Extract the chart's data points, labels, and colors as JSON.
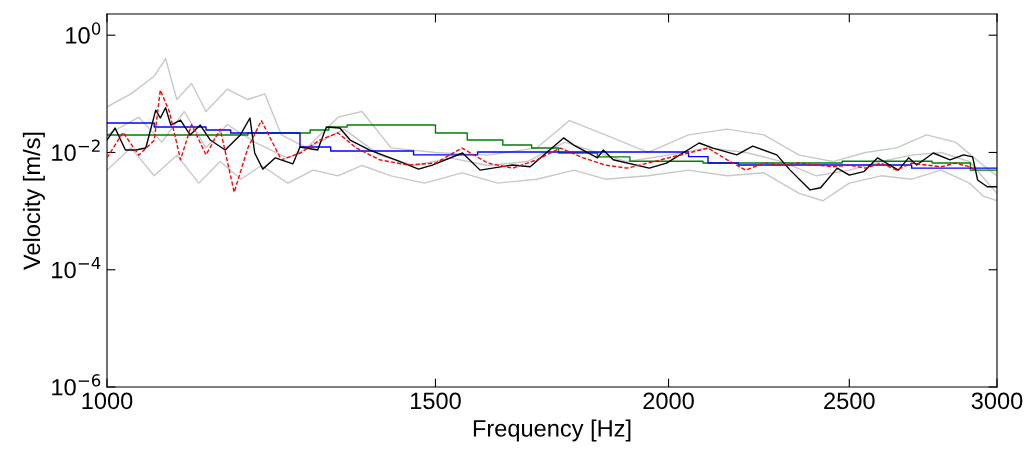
{
  "chart_data": {
    "type": "line",
    "xlabel": "Frequency [Hz]",
    "ylabel": "Velocity [m/s]",
    "log": "xy",
    "grid": false,
    "marker": "none",
    "xlim": [
      1000,
      3000
    ],
    "xticks": [
      1000,
      1500,
      2000,
      2500,
      3000
    ],
    "ylim": [
      1e-06,
      2.3
    ],
    "yticks": [
      {
        "value": 1e-06,
        "label": "10$^{−6}$"
      },
      {
        "value": 0.0001,
        "label": "10$^{−4}$"
      },
      {
        "value": 0.01,
        "label": "10$^{−2}$"
      },
      {
        "value": 1,
        "label": "10$^{0}$"
      }
    ],
    "series": [
      {
        "color": "#c8c8c8",
        "line_style": "solid",
        "x": [
          1000,
          1030,
          1060,
          1075,
          1090,
          1110,
          1130,
          1160,
          1190,
          1215,
          1240,
          1280,
          1330,
          1370,
          1420,
          1500,
          1600,
          1700,
          1770,
          1850,
          1950,
          2050,
          2150,
          2250,
          2350,
          2450,
          2550,
          2650,
          2750,
          2850,
          2950,
          3000
        ],
        "values": [
          0.06,
          0.1,
          0.2,
          0.4,
          0.08,
          0.15,
          0.05,
          0.12,
          0.08,
          0.1,
          0.02,
          0.012,
          0.04,
          0.05,
          0.012,
          0.01,
          0.009,
          0.012,
          0.035,
          0.02,
          0.01,
          0.02,
          0.025,
          0.02,
          0.009,
          0.007,
          0.01,
          0.012,
          0.02,
          0.015,
          0.006,
          0.004
        ]
      },
      {
        "color": "#c8c8c8",
        "line_style": "solid",
        "x": [
          1000,
          1030,
          1060,
          1090,
          1120,
          1150,
          1180,
          1210,
          1250,
          1290,
          1330,
          1370,
          1420,
          1480,
          1550,
          1620,
          1700,
          1780,
          1850,
          1950,
          2050,
          2150,
          2250,
          2350,
          2420,
          2500,
          2600,
          2700,
          2800,
          2900,
          2950,
          3000
        ],
        "values": [
          0.005,
          0.012,
          0.004,
          0.009,
          0.003,
          0.007,
          0.0035,
          0.006,
          0.003,
          0.005,
          0.004,
          0.006,
          0.004,
          0.003,
          0.0045,
          0.003,
          0.0035,
          0.005,
          0.0035,
          0.004,
          0.005,
          0.004,
          0.0045,
          0.002,
          0.0015,
          0.003,
          0.004,
          0.0035,
          0.005,
          0.003,
          0.0018,
          0.0015
        ]
      },
      {
        "color": "#c8c8c8",
        "line_style": "solid",
        "x": [
          1000,
          1040,
          1070,
          1100,
          1130,
          1160,
          1200,
          1250,
          1300,
          1340,
          1400,
          1460,
          1530,
          1600,
          1680,
          1760,
          1830,
          1900,
          2000,
          2100,
          2200,
          2300,
          2400,
          2500,
          2600,
          2700,
          2800,
          2900,
          3000
        ],
        "values": [
          0.02,
          0.04,
          0.015,
          0.05,
          0.012,
          0.03,
          0.015,
          0.008,
          0.015,
          0.025,
          0.009,
          0.006,
          0.008,
          0.006,
          0.007,
          0.015,
          0.01,
          0.007,
          0.009,
          0.012,
          0.01,
          0.007,
          0.004,
          0.005,
          0.007,
          0.009,
          0.01,
          0.007,
          0.002
        ]
      },
      {
        "color": "#ff0000",
        "line_style": "dashed",
        "x": [
          1000,
          1020,
          1040,
          1060,
          1068,
          1080,
          1095,
          1110,
          1130,
          1150,
          1170,
          1190,
          1210,
          1240,
          1270,
          1300,
          1330,
          1360,
          1400,
          1450,
          1500,
          1550,
          1600,
          1650,
          1700,
          1750,
          1800,
          1850,
          1900,
          1950,
          2000,
          2050,
          2100,
          2150,
          2200,
          2250,
          2300,
          2350,
          2400,
          2450,
          2500,
          2550,
          2600,
          2650,
          2700,
          2750,
          2800,
          2850,
          2900,
          2920
        ],
        "values": [
          0.0081,
          0.022,
          0.009,
          0.0161,
          0.116,
          0.05,
          0.0075,
          0.03,
          0.0091,
          0.025,
          0.0021,
          0.012,
          0.035,
          0.0075,
          0.0098,
          0.0163,
          0.0215,
          0.012,
          0.0075,
          0.0061,
          0.0066,
          0.0119,
          0.0066,
          0.0054,
          0.0075,
          0.0119,
          0.0081,
          0.0061,
          0.0054,
          0.0066,
          0.0081,
          0.0098,
          0.0119,
          0.0075,
          0.005,
          0.0066,
          0.0061,
          0.0066,
          0.0061,
          0.0057,
          0.0061,
          0.0054,
          0.0066,
          0.005,
          0.0066,
          0.0061,
          0.0057,
          0.0066,
          0.0057,
          0.005
        ]
      },
      {
        "color": "#008000",
        "type": "step",
        "line_style": "solid",
        "x": [
          1000,
          1190,
          1285,
          1315,
          1345,
          1430,
          1500,
          1560,
          1630,
          1689,
          1746,
          1832,
          1907,
          2087,
          2478,
          2769,
          2903,
          3000
        ],
        "values": [
          0.0199,
          0.0215,
          0.0242,
          0.0272,
          0.0294,
          0.0294,
          0.0215,
          0.0163,
          0.0134,
          0.0119,
          0.0098,
          0.0084,
          0.0071,
          0.0066,
          0.0071,
          0.0066,
          0.005,
          0.005
        ]
      },
      {
        "color": "#0000ff",
        "type": "step",
        "line_style": "solid",
        "x": [
          1000,
          1060,
          1130,
          1165,
          1269,
          1318,
          1460,
          1580,
          2050,
          2100,
          2180,
          2700,
          3000
        ],
        "values": [
          0.0318,
          0.0272,
          0.0242,
          0.0215,
          0.0124,
          0.0106,
          0.0091,
          0.0102,
          0.0085,
          0.0066,
          0.0061,
          0.0054,
          0.0054
        ]
      },
      {
        "color": "#000000",
        "line_style": "solid",
        "x": [
          1000,
          1010,
          1023,
          1036,
          1049,
          1062,
          1068,
          1075,
          1082,
          1095,
          1108,
          1122,
          1136,
          1157,
          1179,
          1193,
          1200,
          1212,
          1231,
          1258,
          1269,
          1297,
          1311,
          1333,
          1350,
          1383,
          1428,
          1469,
          1494,
          1551,
          1585,
          1649,
          1686,
          1757,
          1779,
          1832,
          1845,
          1868,
          1953,
          1995,
          2077,
          2113,
          2176,
          2219,
          2286,
          2324,
          2382,
          2413,
          2463,
          2500,
          2545,
          2589,
          2656,
          2690,
          2717,
          2773,
          2831,
          2879,
          2911,
          2929,
          2964,
          3000
        ],
        "values": [
          0.0163,
          0.0261,
          0.011,
          0.011,
          0.0119,
          0.0528,
          0.0387,
          0.058,
          0.0294,
          0.0357,
          0.0199,
          0.0294,
          0.0163,
          0.011,
          0.0199,
          0.0387,
          0.0098,
          0.0052,
          0.0081,
          0.0064,
          0.0124,
          0.011,
          0.0272,
          0.0261,
          0.0163,
          0.011,
          0.0075,
          0.0052,
          0.0061,
          0.0098,
          0.005,
          0.0061,
          0.0057,
          0.0177,
          0.0134,
          0.0081,
          0.011,
          0.0075,
          0.0054,
          0.0066,
          0.0145,
          0.0119,
          0.0091,
          0.0128,
          0.0091,
          0.005,
          0.0023,
          0.0025,
          0.0054,
          0.0041,
          0.0047,
          0.0081,
          0.005,
          0.0081,
          0.0061,
          0.0098,
          0.0075,
          0.0091,
          0.0084,
          0.0034,
          0.0026,
          0.0026
        ]
      }
    ]
  }
}
